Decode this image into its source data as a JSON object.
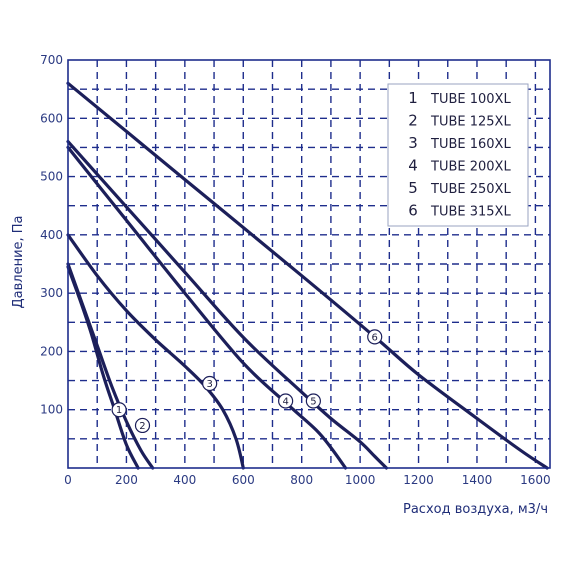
{
  "chart_data": {
    "type": "line",
    "xlabel": "Расход воздуха, м3/ч",
    "ylabel": "Давление, Па",
    "xlim": [
      0,
      1650
    ],
    "ylim": [
      0,
      700
    ],
    "x_ticks": [
      0,
      200,
      400,
      600,
      800,
      1000,
      1200,
      1400,
      1600
    ],
    "y_ticks": [
      100,
      200,
      300,
      400,
      500,
      600,
      700
    ],
    "grid": "dashed",
    "legend_placement": "top-right",
    "colors": {
      "grid": "#1e2d8c",
      "axis_text": "#2b3a82",
      "curve": "#1c1f5a"
    },
    "series": [
      {
        "name": "TUBE 100XL",
        "number": "1",
        "marker": "1",
        "points": [
          [
            0,
            345
          ],
          [
            40,
            290
          ],
          [
            80,
            230
          ],
          [
            120,
            160
          ],
          [
            160,
            100
          ],
          [
            200,
            40
          ],
          [
            240,
            0
          ]
        ]
      },
      {
        "name": "TUBE 125XL",
        "number": "2",
        "marker": "2",
        "points": [
          [
            0,
            350
          ],
          [
            50,
            280
          ],
          [
            100,
            210
          ],
          [
            150,
            140
          ],
          [
            200,
            80
          ],
          [
            250,
            30
          ],
          [
            290,
            0
          ]
        ]
      },
      {
        "name": "TUBE 160XL",
        "number": "3",
        "marker": "3",
        "points": [
          [
            0,
            400
          ],
          [
            100,
            330
          ],
          [
            200,
            270
          ],
          [
            300,
            220
          ],
          [
            400,
            175
          ],
          [
            470,
            140
          ],
          [
            530,
            100
          ],
          [
            575,
            50
          ],
          [
            600,
            0
          ]
        ]
      },
      {
        "name": "TUBE 200XL",
        "number": "4",
        "marker": "4",
        "points": [
          [
            0,
            550
          ],
          [
            200,
            425
          ],
          [
            400,
            300
          ],
          [
            600,
            180
          ],
          [
            750,
            110
          ],
          [
            850,
            65
          ],
          [
            900,
            35
          ],
          [
            950,
            0
          ]
        ]
      },
      {
        "name": "TUBE 250XL",
        "number": "5",
        "marker": "5",
        "points": [
          [
            0,
            560
          ],
          [
            200,
            448
          ],
          [
            400,
            336
          ],
          [
            600,
            224
          ],
          [
            800,
            130
          ],
          [
            900,
            85
          ],
          [
            1000,
            45
          ],
          [
            1050,
            20
          ],
          [
            1090,
            0
          ]
        ]
      },
      {
        "name": "TUBE 315XL",
        "number": "6",
        "marker": "6",
        "points": [
          [
            0,
            660
          ],
          [
            400,
            495
          ],
          [
            800,
            330
          ],
          [
            1050,
            225
          ],
          [
            1200,
            160
          ],
          [
            1400,
            85
          ],
          [
            1550,
            30
          ],
          [
            1640,
            0
          ]
        ]
      }
    ],
    "markers": [
      {
        "label": "1",
        "x": 175,
        "y": 100
      },
      {
        "label": "2",
        "x": 255,
        "y": 73
      },
      {
        "label": "3",
        "x": 485,
        "y": 145
      },
      {
        "label": "4",
        "x": 745,
        "y": 115
      },
      {
        "label": "5",
        "x": 840,
        "y": 115
      },
      {
        "label": "6",
        "x": 1050,
        "y": 225
      }
    ]
  }
}
